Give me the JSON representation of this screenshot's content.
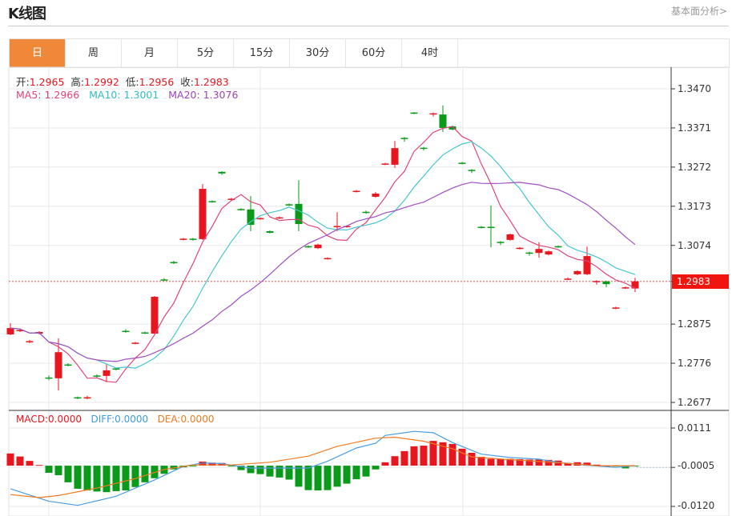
{
  "header": {
    "title": "K线图",
    "link": "基本面分析>"
  },
  "tabs": [
    {
      "label": "日",
      "active": true
    },
    {
      "label": "周"
    },
    {
      "label": "月"
    },
    {
      "label": "5分"
    },
    {
      "label": "15分"
    },
    {
      "label": "30分"
    },
    {
      "label": "60分"
    },
    {
      "label": "4时"
    }
  ],
  "ohlc_legend": {
    "open_label": "开:",
    "open": "1.2965",
    "high_label": "高:",
    "high": "1.2992",
    "low_label": "低:",
    "low": "1.2956",
    "close_label": "收:",
    "close": "1.2983"
  },
  "ma_legend": {
    "ma5": "MA5: 1.2966",
    "ma10": "MA10: 1.3001",
    "ma20": "MA20: 1.3076"
  },
  "macd_legend": {
    "macd": "MACD:0.0000",
    "diff": "DIFF:0.0000",
    "dea": "DEA:0.0000"
  },
  "current_price": "1.2983",
  "colors": {
    "up": "#e8161e",
    "down": "#0a9a1a",
    "ma5": "#e0447a",
    "ma10": "#45c6cf",
    "ma20": "#a04fc0",
    "diff": "#4a9de0",
    "dea": "#f07a20",
    "tab_active": "#f0883a"
  },
  "chart_data": [
    {
      "type": "candlestick",
      "up_color": "red",
      "down_color": "green",
      "ylim": [
        1.2677,
        1.347
      ],
      "yticks": [
        "1.3470",
        "1.3371",
        "1.3272",
        "1.3173",
        "1.3074",
        "1.2983",
        "1.2875",
        "1.2776",
        "1.2677"
      ],
      "grid": true,
      "moving_averages": [
        5,
        10,
        20
      ],
      "ohlc": [
        [
          1.2849,
          1.2877,
          1.2847,
          1.2865
        ],
        [
          1.2858,
          1.2863,
          1.2855,
          1.286
        ],
        [
          1.283,
          1.2835,
          1.2827,
          1.2832
        ],
        [
          1.2851,
          1.2857,
          1.2849,
          1.2855
        ],
        [
          1.274,
          1.2745,
          1.2733,
          1.2737
        ],
        [
          1.2738,
          1.2839,
          1.2707,
          1.2804
        ],
        [
          1.2773,
          1.2776,
          1.2768,
          1.2771
        ],
        [
          1.269,
          1.2692,
          1.2685,
          1.2688
        ],
        [
          1.2688,
          1.2694,
          1.2685,
          1.269
        ],
        [
          1.2745,
          1.2748,
          1.274,
          1.2743
        ],
        [
          1.2744,
          1.2774,
          1.2728,
          1.2758
        ],
        [
          1.2763,
          1.2765,
          1.2758,
          1.2761
        ],
        [
          1.2858,
          1.2862,
          1.2853,
          1.2856
        ],
        [
          1.2826,
          1.283,
          1.2824,
          1.2828
        ],
        [
          1.2854,
          1.2856,
          1.285,
          1.2852
        ],
        [
          1.2851,
          1.2946,
          1.285,
          1.2944
        ],
        [
          1.2988,
          1.2991,
          1.2984,
          1.2986
        ],
        [
          1.3032,
          1.3035,
          1.3027,
          1.303
        ],
        [
          1.3088,
          1.3093,
          1.3087,
          1.3091
        ],
        [
          1.3091,
          1.3093,
          1.3086,
          1.3089
        ],
        [
          1.309,
          1.3229,
          1.3088,
          1.3217
        ],
        [
          1.3186,
          1.3188,
          1.3182,
          1.3184
        ],
        [
          1.326,
          1.3262,
          1.3252,
          1.3256
        ],
        [
          1.319,
          1.3194,
          1.3188,
          1.3192
        ],
        [
          1.3166,
          1.3168,
          1.3162,
          1.3164
        ],
        [
          1.3165,
          1.3199,
          1.311,
          1.3126
        ],
        [
          1.3141,
          1.3145,
          1.3139,
          1.3143
        ],
        [
          1.311,
          1.3112,
          1.3104,
          1.3106
        ],
        [
          1.3143,
          1.3147,
          1.3141,
          1.3145
        ],
        [
          1.3178,
          1.318,
          1.3174,
          1.3176
        ],
        [
          1.3179,
          1.3239,
          1.311,
          1.3128
        ],
        [
          1.3072,
          1.3074,
          1.3068,
          1.307
        ],
        [
          1.3067,
          1.3078,
          1.3065,
          1.3076
        ],
        [
          1.304,
          1.3044,
          1.3038,
          1.3042
        ],
        [
          1.3121,
          1.3158,
          1.311,
          1.3123
        ],
        [
          1.3121,
          1.3125,
          1.3119,
          1.3123
        ],
        [
          1.321,
          1.3214,
          1.3208,
          1.3212
        ],
        [
          1.3159,
          1.3162,
          1.3154,
          1.3157
        ],
        [
          1.3197,
          1.3209,
          1.3195,
          1.3205
        ],
        [
          1.3279,
          1.3283,
          1.3277,
          1.3281
        ],
        [
          1.3278,
          1.3338,
          1.327,
          1.332
        ],
        [
          1.3346,
          1.3348,
          1.3336,
          1.3344
        ],
        [
          1.341,
          1.3411,
          1.3406,
          1.3408
        ],
        [
          1.3321,
          1.3323,
          1.3314,
          1.3319
        ],
        [
          1.3406,
          1.341,
          1.34,
          1.3408
        ],
        [
          1.3405,
          1.3428,
          1.3361,
          1.3371
        ],
        [
          1.3375,
          1.3377,
          1.3365,
          1.3367
        ],
        [
          1.3283,
          1.3285,
          1.3279,
          1.3281
        ],
        [
          1.3265,
          1.3267,
          1.3257,
          1.3263
        ],
        [
          1.3121,
          1.3123,
          1.3117,
          1.3119
        ],
        [
          1.3121,
          1.3175,
          1.3069,
          1.3119
        ],
        [
          1.3083,
          1.3085,
          1.3075,
          1.3081
        ],
        [
          1.3088,
          1.3104,
          1.3086,
          1.3102
        ],
        [
          1.3066,
          1.307,
          1.3064,
          1.3068
        ],
        [
          1.3056,
          1.3058,
          1.3048,
          1.3054
        ],
        [
          1.3055,
          1.3082,
          1.3043,
          1.3065
        ],
        [
          1.3051,
          1.3061,
          1.3049,
          1.3059
        ],
        [
          1.3072,
          1.3074,
          1.3068,
          1.307
        ],
        [
          1.2988,
          1.2993,
          1.2986,
          1.299
        ],
        [
          1.3001,
          1.3011,
          1.2999,
          1.3009
        ],
        [
          1.3001,
          1.3071,
          1.2999,
          1.3047
        ],
        [
          1.2982,
          1.2986,
          1.2975,
          1.2984
        ],
        [
          1.2983,
          1.2985,
          1.2968,
          1.2976
        ],
        [
          1.2915,
          1.2919,
          1.2913,
          1.2917
        ],
        [
          1.2966,
          1.297,
          1.2964,
          1.2968
        ],
        [
          1.2965,
          1.2992,
          1.2956,
          1.2983
        ]
      ]
    },
    {
      "type": "macd",
      "ylim": [
        -0.012,
        0.0111
      ],
      "yticks": [
        "0.0111",
        "-0.0005",
        "-0.0120"
      ],
      "histogram": [
        0.0036,
        0.0027,
        0.0014,
        0.0002,
        -0.0021,
        -0.0028,
        -0.0049,
        -0.0068,
        -0.0073,
        -0.0076,
        -0.0078,
        -0.0075,
        -0.0073,
        -0.0063,
        -0.0049,
        -0.0037,
        -0.0024,
        -0.0011,
        -0.0005,
        -0.0002,
        0.0012,
        0.0009,
        0.0008,
        -0.0001,
        -0.0013,
        -0.0022,
        -0.0025,
        -0.0032,
        -0.0035,
        -0.0041,
        -0.0062,
        -0.0072,
        -0.0073,
        -0.0072,
        -0.0062,
        -0.0053,
        -0.004,
        -0.0032,
        -0.0011,
        0.001,
        0.0028,
        0.0043,
        0.0057,
        0.0059,
        0.0073,
        0.0069,
        0.0064,
        0.005,
        0.0038,
        0.0026,
        0.002,
        0.0019,
        0.002,
        0.0019,
        0.0018,
        0.0018,
        0.0017,
        0.0015,
        0.0008,
        0.001,
        0.0009,
        0.0003,
        0.0,
        -0.0002,
        -0.0008,
        -0.0001
      ],
      "diff": [
        [
          0,
          -0.0068
        ],
        [
          4,
          -0.0105
        ],
        [
          7,
          -0.0117
        ],
        [
          11,
          -0.009
        ],
        [
          15,
          -0.0042
        ],
        [
          18,
          -0.0002
        ],
        [
          20,
          0.0008
        ],
        [
          22,
          0.0006
        ],
        [
          25,
          -0.0007
        ],
        [
          31,
          -0.0007
        ],
        [
          33,
          0.0013
        ],
        [
          36,
          0.0052
        ],
        [
          38,
          0.0066
        ],
        [
          39,
          0.0089
        ],
        [
          42,
          0.0101
        ],
        [
          44,
          0.0097
        ],
        [
          46,
          0.0068
        ],
        [
          49,
          0.0034
        ],
        [
          52,
          0.0024
        ],
        [
          55,
          0.0019
        ],
        [
          57,
          0.001
        ],
        [
          60,
          0.0001
        ],
        [
          63,
          -0.0005
        ],
        [
          65,
          0.0
        ]
      ],
      "dea": [
        [
          0,
          -0.0085
        ],
        [
          3,
          -0.0094
        ],
        [
          5,
          -0.0088
        ],
        [
          9,
          -0.0066
        ],
        [
          13,
          -0.0038
        ],
        [
          16,
          -0.0011
        ],
        [
          19,
          0.0002
        ],
        [
          23,
          0.0002
        ],
        [
          27,
          0.001
        ],
        [
          31,
          0.0028
        ],
        [
          34,
          0.0057
        ],
        [
          38,
          0.0081
        ],
        [
          40,
          0.0084
        ],
        [
          43,
          0.0072
        ],
        [
          46,
          0.005
        ],
        [
          48,
          0.0026
        ],
        [
          52,
          0.0018
        ],
        [
          57,
          0.0009
        ],
        [
          61,
          0.0
        ],
        [
          65,
          0.0
        ]
      ]
    }
  ]
}
